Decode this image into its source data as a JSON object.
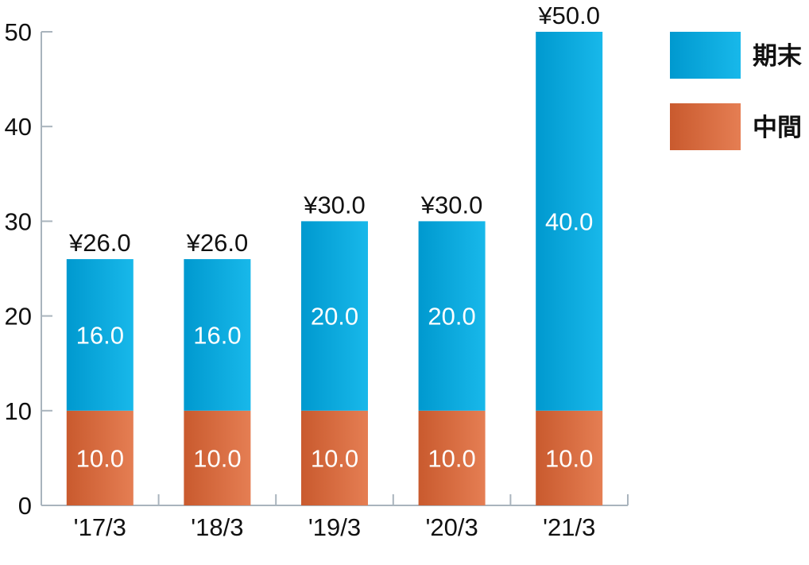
{
  "chart_data": {
    "type": "bar",
    "stacked": true,
    "categories": [
      "'17/3",
      "'18/3",
      "'19/3",
      "'20/3",
      "'21/3"
    ],
    "series": [
      {
        "name": "中間",
        "values": [
          10.0,
          10.0,
          10.0,
          10.0,
          10.0
        ],
        "color_start": "#c95a2e",
        "color_end": "#e57e53"
      },
      {
        "name": "期末",
        "values": [
          16.0,
          16.0,
          20.0,
          20.0,
          40.0
        ],
        "color_start": "#0099cf",
        "color_end": "#18b8ea"
      }
    ],
    "segment_labels": [
      [
        "10.0",
        "10.0",
        "10.0",
        "10.0",
        "10.0"
      ],
      [
        "16.0",
        "16.0",
        "20.0",
        "20.0",
        "40.0"
      ]
    ],
    "totals": [
      "¥26.0",
      "¥26.0",
      "¥30.0",
      "¥30.0",
      "¥50.0"
    ],
    "y_ticks": [
      "0",
      "10",
      "20",
      "30",
      "40",
      "50"
    ],
    "ylim": [
      0,
      50
    ],
    "xlabel": "",
    "ylabel": "",
    "title": "",
    "grid": false,
    "legend_position": "top-right",
    "axis_color": "#a9b4bd"
  }
}
